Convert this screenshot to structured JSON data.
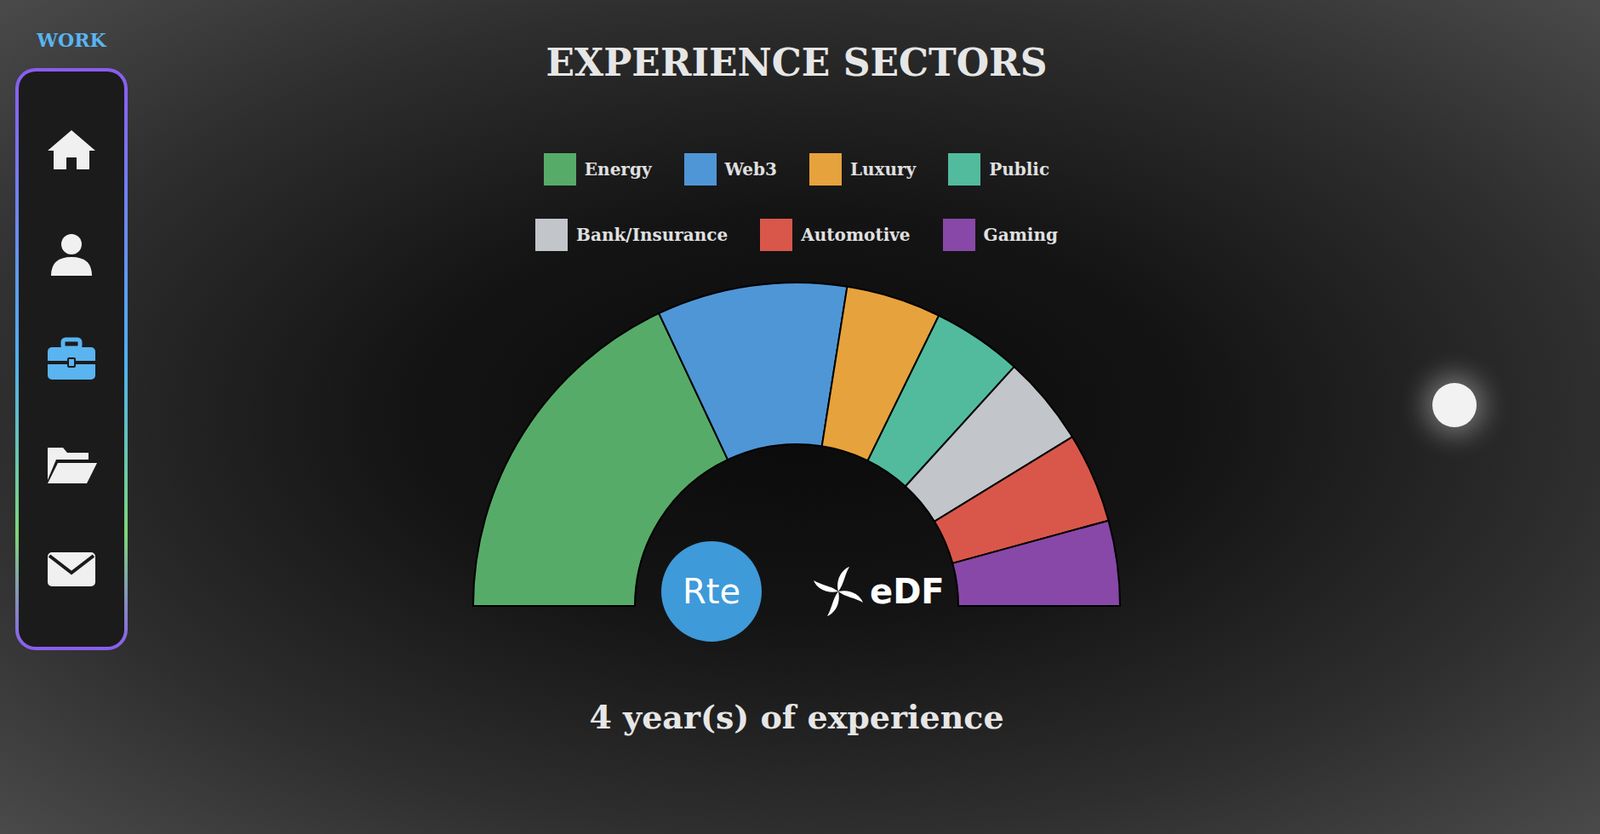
{
  "chart_data": {
    "type": "donut",
    "title": "EXPERIENCE SECTORS",
    "categories": [
      "Energy",
      "Web3",
      "Luxury",
      "Public",
      "Bank/Insurance",
      "Automotive",
      "Gaming"
    ],
    "values": [
      36,
      19,
      9.5,
      9,
      9,
      9,
      8.5
    ],
    "colors": [
      "#57ab68",
      "#4f96d6",
      "#e6a23c",
      "#52bb9e",
      "#c2c5c9",
      "#d9574a",
      "#8848a8"
    ],
    "legend": "top",
    "annotations": [
      "4 year(s) of experience"
    ]
  },
  "nav": {
    "label": "WORK"
  },
  "logos": [
    {
      "label": "Rte",
      "color": "#3e9ad9"
    },
    {
      "label": "eDF",
      "color": "#ffffff"
    }
  ]
}
